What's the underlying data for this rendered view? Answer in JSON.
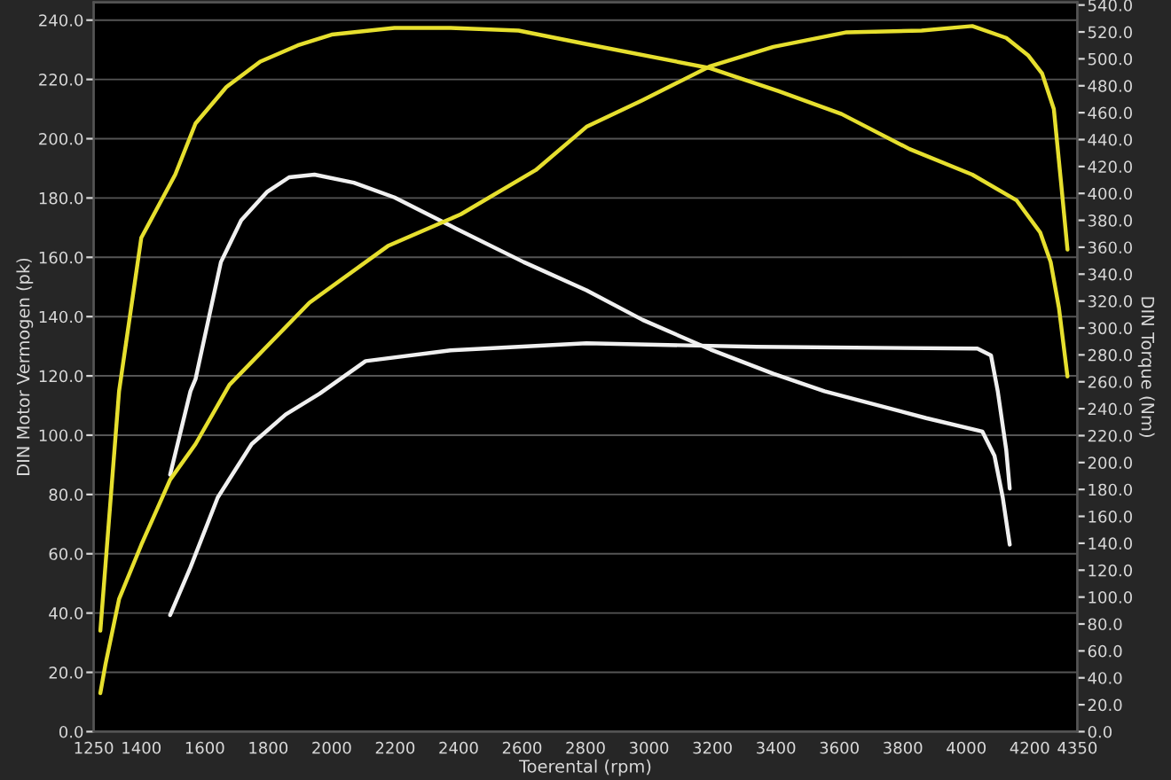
{
  "chart_data": {
    "type": "line",
    "xlabel": "Toerental (rpm)",
    "ylabel": "DIN Motor Vermogen (pk)",
    "y2label": "DIN Torque (Nm)",
    "xlim": [
      1250,
      4350
    ],
    "xticks": [
      1250,
      1400,
      1600,
      1800,
      2000,
      2200,
      2400,
      2600,
      2800,
      3000,
      3200,
      3400,
      3600,
      3800,
      4000,
      4200,
      4350
    ],
    "ylim": [
      0,
      246
    ],
    "yticks": [
      {
        "value": 0,
        "label": "0.0"
      },
      {
        "value": 20,
        "label": "20.0"
      },
      {
        "value": 40,
        "label": "40.0"
      },
      {
        "value": 60,
        "label": "60.0"
      },
      {
        "value": 80,
        "label": "80.0"
      },
      {
        "value": 100,
        "label": "100.0"
      },
      {
        "value": 120,
        "label": "120.0"
      },
      {
        "value": 140,
        "label": "140.0"
      },
      {
        "value": 160,
        "label": "160.0"
      },
      {
        "value": 180,
        "label": "180.0"
      },
      {
        "value": 200,
        "label": "200.0"
      },
      {
        "value": 220,
        "label": "220.0"
      },
      {
        "value": 240,
        "label": "240.0"
      }
    ],
    "y2lim": [
      0,
      542
    ],
    "y2ticks": [
      {
        "value": 0,
        "label": "0.0"
      },
      {
        "value": 20,
        "label": "20.0"
      },
      {
        "value": 40,
        "label": "40.0"
      },
      {
        "value": 60,
        "label": "60.0"
      },
      {
        "value": 80,
        "label": "80.0"
      },
      {
        "value": 100,
        "label": "100.0"
      },
      {
        "value": 120,
        "label": "120.0"
      },
      {
        "value": 140,
        "label": "140.0"
      },
      {
        "value": 160,
        "label": "160.0"
      },
      {
        "value": 180,
        "label": "180.0"
      },
      {
        "value": 200,
        "label": "200.0"
      },
      {
        "value": 220,
        "label": "220.0"
      },
      {
        "value": 240,
        "label": "240.0"
      },
      {
        "value": 260,
        "label": "260.0"
      },
      {
        "value": 280,
        "label": "280.0"
      },
      {
        "value": 300,
        "label": "300.0"
      },
      {
        "value": 320,
        "label": "320.0"
      },
      {
        "value": 340,
        "label": "340.0"
      },
      {
        "value": 360,
        "label": "360.0"
      },
      {
        "value": 380,
        "label": "380.0"
      },
      {
        "value": 400,
        "label": "400.0"
      },
      {
        "value": 420,
        "label": "420.0"
      },
      {
        "value": 440,
        "label": "440.0"
      },
      {
        "value": 460,
        "label": "460.0"
      },
      {
        "value": 480,
        "label": "480.0"
      },
      {
        "value": 500,
        "label": "500.0"
      },
      {
        "value": 520,
        "label": "520.0"
      },
      {
        "value": 540,
        "label": "540.0"
      }
    ],
    "grid": true,
    "legend": false,
    "marker": "none",
    "line_style": "solid",
    "series": [
      {
        "color": "#e6df2e",
        "axis": "y2",
        "x": [
          1271,
          1330,
          1400,
          1507,
          1571,
          1668,
          1775,
          1893,
          2000,
          2198,
          2375,
          2589,
          2803,
          3194,
          3409,
          3607,
          3821,
          4019,
          4158,
          4233,
          4266,
          4292,
          4319
        ],
        "values": [
          75,
          253,
          367,
          414,
          452,
          479,
          498,
          510,
          518,
          523,
          523,
          521,
          511,
          493,
          476,
          459,
          433,
          414,
          395,
          371,
          349,
          315,
          264
        ]
      },
      {
        "color": "#e6df2e",
        "x": [
          1271,
          1287,
          1330,
          1400,
          1491,
          1571,
          1678,
          1930,
          2177,
          2407,
          2643,
          2803,
          2980,
          3194,
          3392,
          3623,
          3859,
          4019,
          4126,
          4196,
          4239,
          4276,
          4298,
          4319
        ],
        "values": [
          13,
          22.6,
          44.7,
          63,
          85,
          97,
          117,
          144.7,
          163.8,
          174.5,
          189.4,
          204,
          213,
          224.5,
          231,
          235.9,
          236.5,
          238,
          234,
          228,
          222,
          210,
          186,
          162.6
        ]
      },
      {
        "color": "#f0f0f0",
        "axis": "y2",
        "x": [
          1491,
          1555,
          1571,
          1651,
          1715,
          1796,
          1866,
          1946,
          2070,
          2198,
          2391,
          2605,
          2803,
          2980,
          3194,
          3392,
          3553,
          3874,
          4051,
          4089,
          4115,
          4137
        ],
        "values": [
          191,
          253,
          262,
          349,
          380,
          401,
          412,
          414,
          408,
          397,
          374,
          349,
          328,
          306,
          284,
          266,
          253,
          233,
          223,
          205,
          174,
          139
        ]
      },
      {
        "color": "#f0f0f0",
        "x": [
          1491,
          1555,
          1641,
          1748,
          1855,
          1962,
          2107,
          2375,
          2803,
          3339,
          4035,
          4078,
          4099,
          4126,
          4137
        ],
        "values": [
          39.3,
          55.4,
          79,
          97,
          107,
          114,
          125,
          128.6,
          131,
          129.8,
          129.2,
          126.9,
          115,
          95,
          82
        ]
      }
    ]
  }
}
